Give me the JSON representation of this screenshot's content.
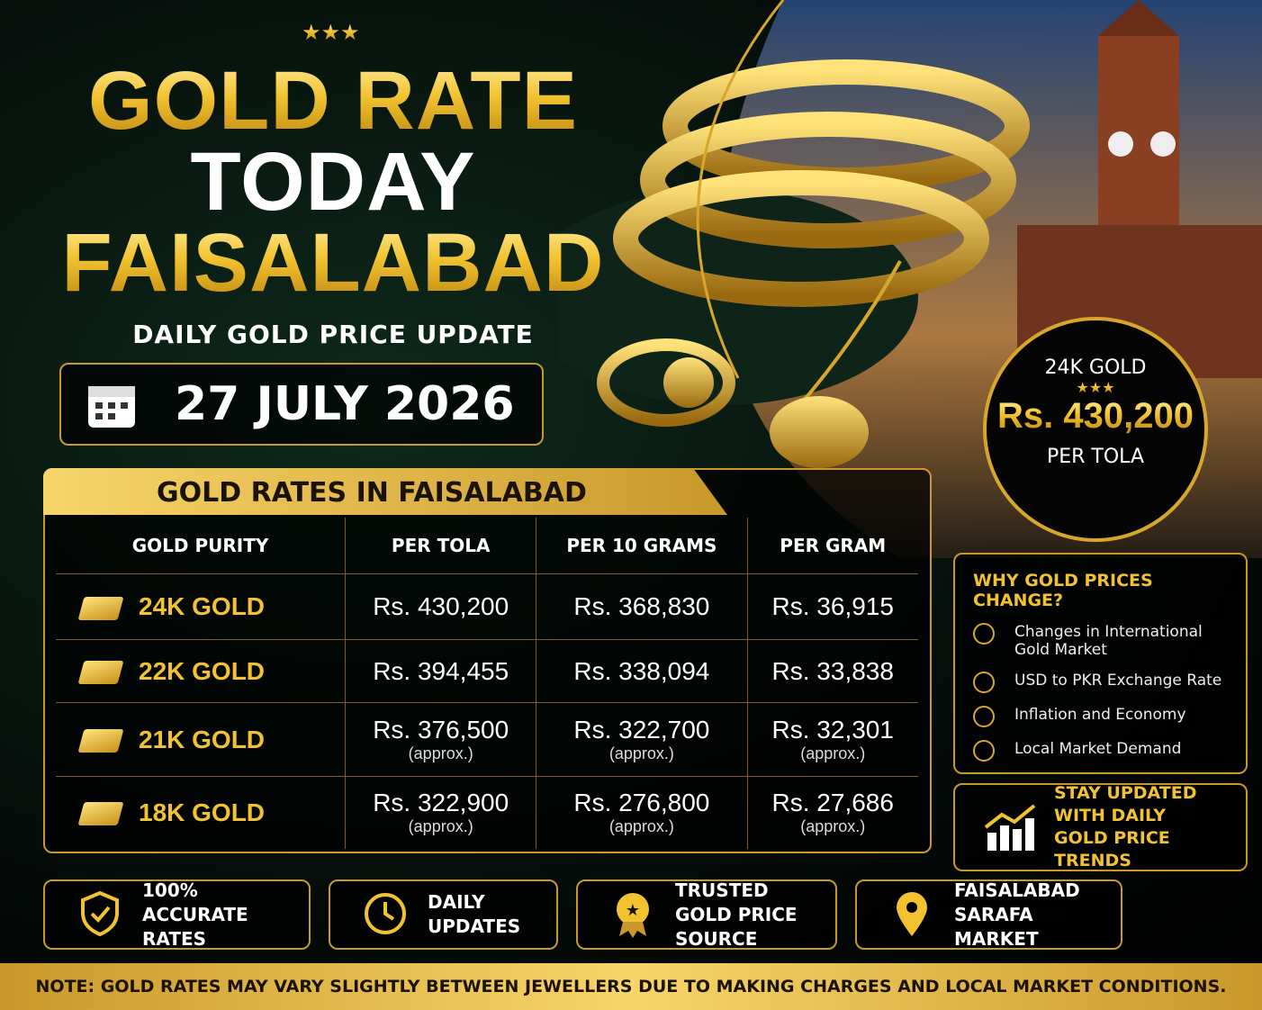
{
  "header": {
    "title_line1": "GOLD RATE",
    "title_line2": "TODAY",
    "title_line3": "FAISALABAD",
    "subtitle": "DAILY GOLD PRICE UPDATE",
    "date": "27 JULY 2026"
  },
  "badge": {
    "label": "24K GOLD",
    "price": "Rs. 430,200",
    "unit": "PER TOLA"
  },
  "table": {
    "title": "GOLD RATES IN FAISALABAD",
    "columns": [
      "GOLD PURITY",
      "PER TOLA",
      "PER 10 GRAMS",
      "PER GRAM"
    ],
    "rows": [
      {
        "purity": "24K GOLD",
        "cells": [
          {
            "price": "Rs. 430,200"
          },
          {
            "price": "Rs. 368,830"
          },
          {
            "price": "Rs. 36,915"
          }
        ]
      },
      {
        "purity": "22K GOLD",
        "cells": [
          {
            "price": "Rs. 394,455"
          },
          {
            "price": "Rs. 338,094"
          },
          {
            "price": "Rs. 33,838"
          }
        ]
      },
      {
        "purity": "21K GOLD",
        "cells": [
          {
            "price": "Rs. 376,500",
            "note": "(approx.)"
          },
          {
            "price": "Rs. 322,700",
            "note": "(approx.)"
          },
          {
            "price": "Rs. 32,301",
            "note": "(approx.)"
          }
        ]
      },
      {
        "purity": "18K GOLD",
        "cells": [
          {
            "price": "Rs. 322,900",
            "note": "(approx.)"
          },
          {
            "price": "Rs. 276,800",
            "note": "(approx.)"
          },
          {
            "price": "Rs. 27,686",
            "note": "(approx.)"
          }
        ]
      }
    ]
  },
  "factors": {
    "title": "WHY GOLD PRICES CHANGE?",
    "items": [
      "Changes in International Gold Market",
      "USD to PKR Exchange Rate",
      "Inflation and Economy",
      "Local Market Demand"
    ]
  },
  "cta": "STAY UPDATED WITH DAILY GOLD PRICE TRENDS",
  "features": [
    "100% ACCURATE RATES",
    "DAILY UPDATES",
    "TRUSTED GOLD PRICE SOURCE",
    "FAISALABAD SARAFA MARKET"
  ],
  "note": "NOTE: GOLD RATES MAY VARY SLIGHTLY BETWEEN JEWELLERS DUE TO MAKING CHARGES AND LOCAL MARKET CONDITIONS."
}
